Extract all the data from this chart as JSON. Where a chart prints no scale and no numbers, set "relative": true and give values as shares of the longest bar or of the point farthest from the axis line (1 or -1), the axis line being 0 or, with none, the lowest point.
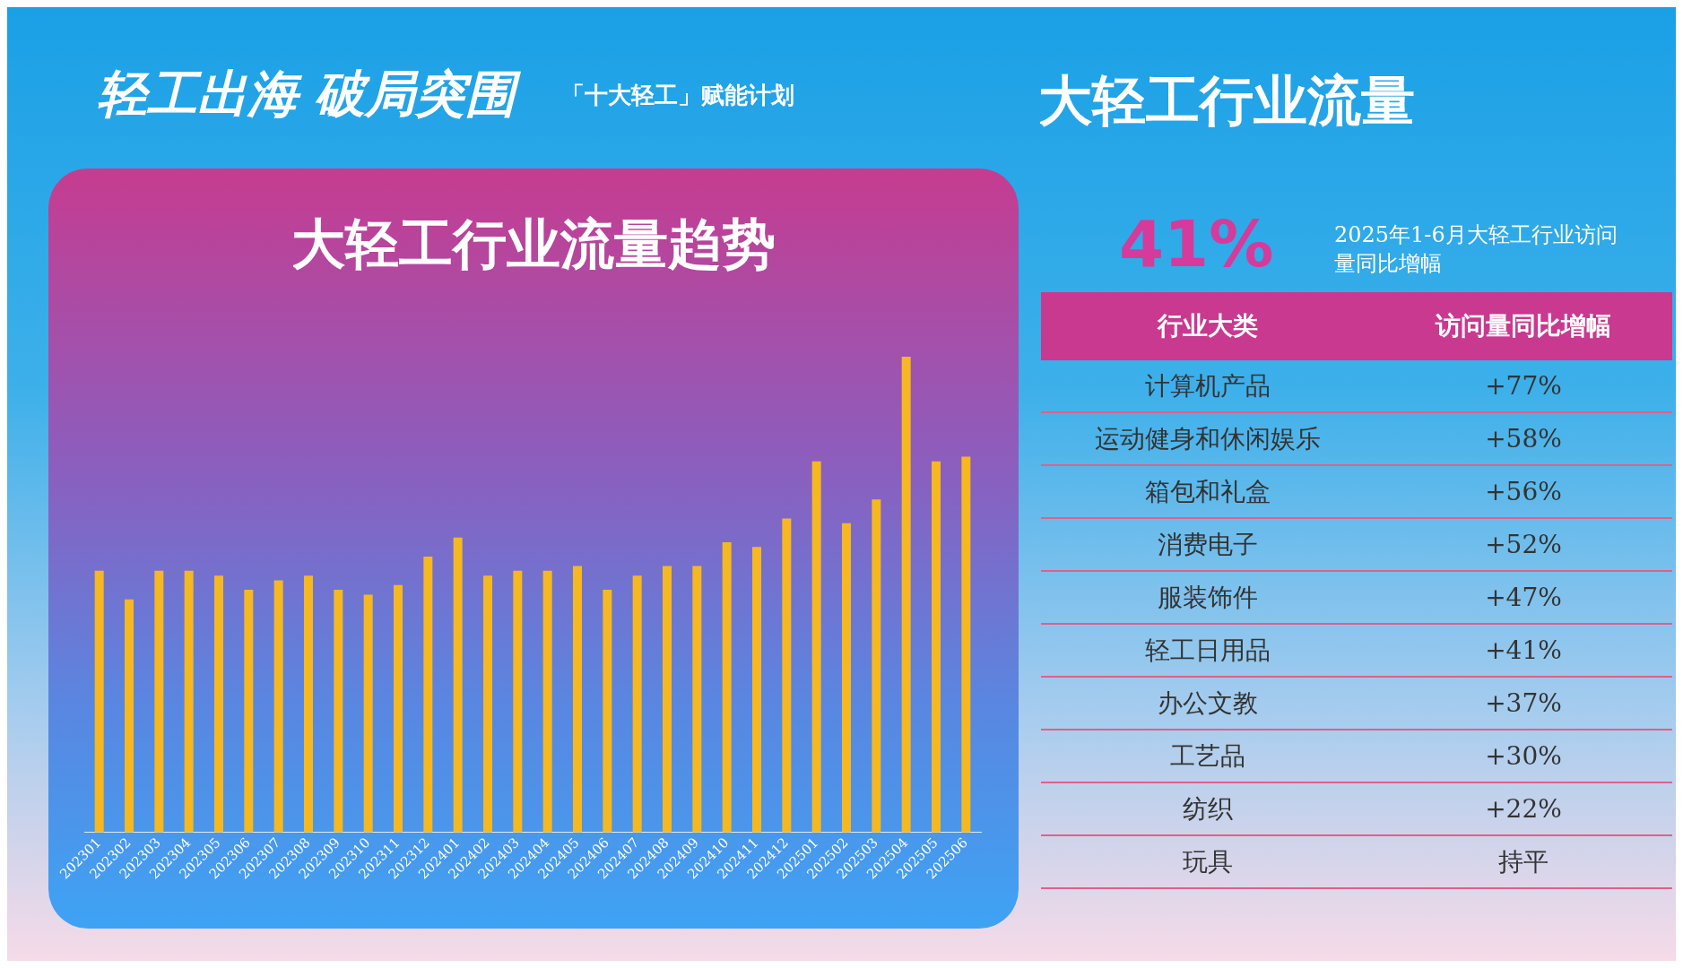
{
  "chart_data": [
    {
      "type": "bar",
      "title": "大轻工行业流量趋势",
      "relative": true,
      "color": "#f5b820",
      "grid": false,
      "legend": false,
      "categories": [
        "202301",
        "202302",
        "202303",
        "202304",
        "202305",
        "202306",
        "202307",
        "202308",
        "202309",
        "202310",
        "202311",
        "202312",
        "202401",
        "202402",
        "202403",
        "202404",
        "202405",
        "202406",
        "202407",
        "202408",
        "202409",
        "202410",
        "202411",
        "202412",
        "202501",
        "202502",
        "202503",
        "202504",
        "202505",
        "202506"
      ],
      "values": [
        0.55,
        0.49,
        0.55,
        0.55,
        0.54,
        0.51,
        0.53,
        0.54,
        0.51,
        0.5,
        0.52,
        0.58,
        0.62,
        0.54,
        0.55,
        0.55,
        0.56,
        0.51,
        0.54,
        0.56,
        0.56,
        0.61,
        0.6,
        0.66,
        0.78,
        0.65,
        0.7,
        1,
        0.78,
        0.79
      ]
    },
    {
      "type": "other",
      "title": "大轻工行业流量",
      "annotations": [
        "轻工出海 破局突围",
        "「十大轻工」赋能计划",
        "41%",
        "2025年1-6月大轻工行业访问量同比增幅",
        "行业大类",
        "访问量同比增幅",
        "计算机产品",
        "+77%",
        "运动健身和休闲娱乐",
        "+58%",
        "箱包和礼盒",
        "+56%",
        "消费电子",
        "+52%",
        "服装饰件",
        "+47%",
        "轻工日用品",
        "+41%",
        "办公文教",
        "+37%",
        "工艺品",
        "+30%",
        "纺织",
        "+22%",
        "玩具",
        "持平"
      ]
    }
  ]
}
